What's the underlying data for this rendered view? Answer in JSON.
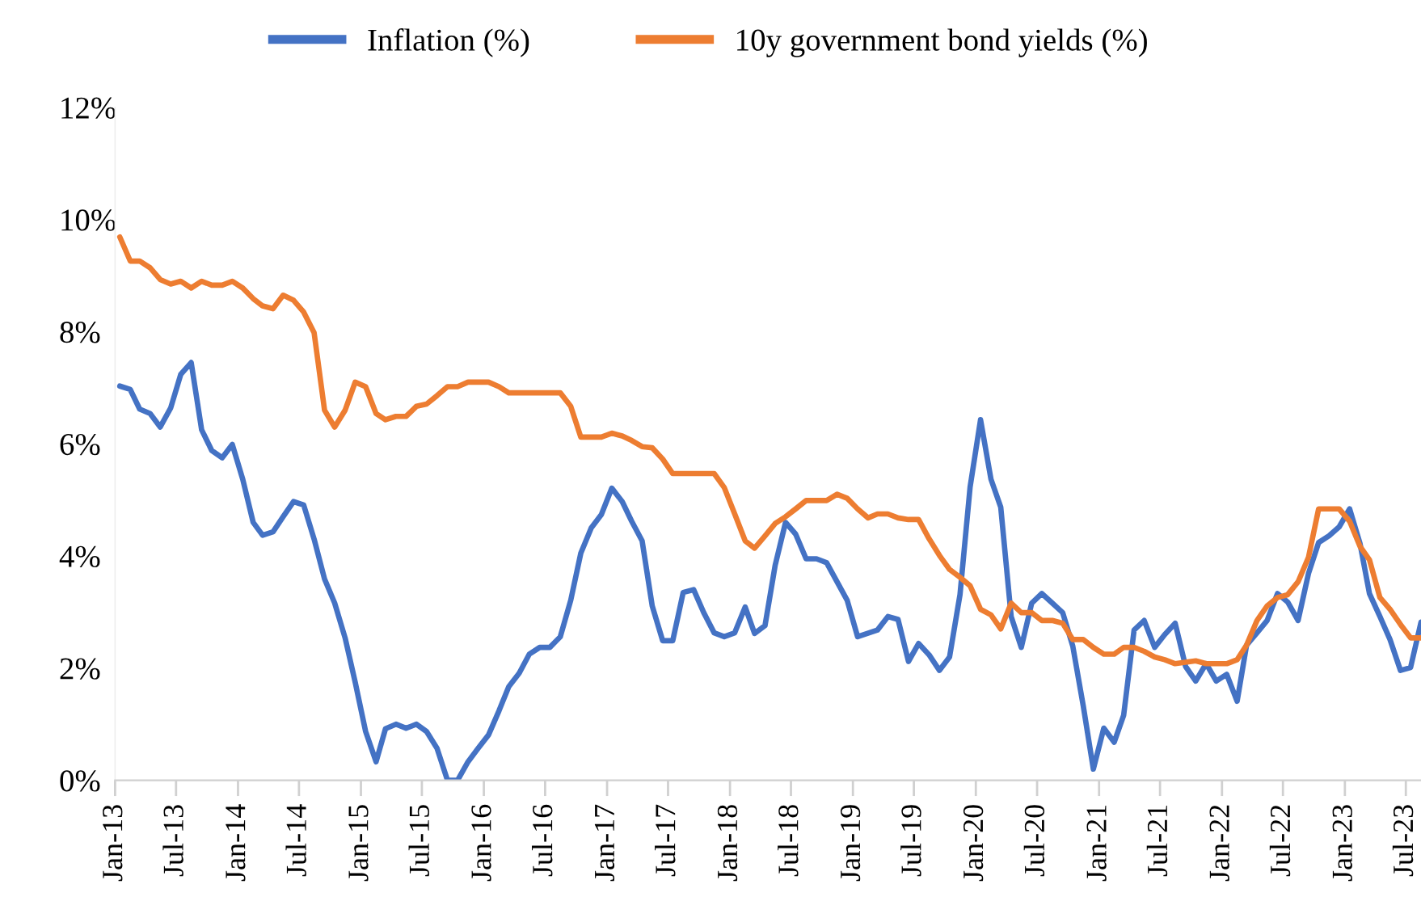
{
  "chart_data": {
    "type": "line",
    "legend": "top",
    "xlim": [
      "2013-01-01",
      "2023-08-15"
    ],
    "xticks": [
      {
        "value": "2013-01-01",
        "label": "Jan-13"
      },
      {
        "value": "2013-07-01",
        "label": "Jul-13"
      },
      {
        "value": "2014-01-01",
        "label": "Jan-14"
      },
      {
        "value": "2014-07-01",
        "label": "Jul-14"
      },
      {
        "value": "2015-01-01",
        "label": "Jan-15"
      },
      {
        "value": "2015-07-01",
        "label": "Jul-15"
      },
      {
        "value": "2016-01-01",
        "label": "Jan-16"
      },
      {
        "value": "2016-07-01",
        "label": "Jul-16"
      },
      {
        "value": "2017-01-01",
        "label": "Jan-17"
      },
      {
        "value": "2017-07-01",
        "label": "Jul-17"
      },
      {
        "value": "2018-01-01",
        "label": "Jan-18"
      },
      {
        "value": "2018-07-01",
        "label": "Jul-18"
      },
      {
        "value": "2019-01-01",
        "label": "Jan-19"
      },
      {
        "value": "2019-07-01",
        "label": "Jul-19"
      },
      {
        "value": "2020-01-01",
        "label": "Jan-20"
      },
      {
        "value": "2020-07-01",
        "label": "Jul-20"
      },
      {
        "value": "2021-01-01",
        "label": "Jan-21"
      },
      {
        "value": "2021-07-01",
        "label": "Jul-21"
      },
      {
        "value": "2022-01-01",
        "label": "Jan-22"
      },
      {
        "value": "2022-07-01",
        "label": "Jul-22"
      },
      {
        "value": "2023-01-01",
        "label": "Jan-23"
      },
      {
        "value": "2023-07-01",
        "label": "Jul-23"
      }
    ],
    "ylim": [
      0,
      12
    ],
    "yticks": [
      {
        "value": 0,
        "label": "0%"
      },
      {
        "value": 2,
        "label": "2%"
      },
      {
        "value": 4,
        "label": "4%"
      },
      {
        "value": 6,
        "label": "6%"
      },
      {
        "value": 8,
        "label": "8%"
      },
      {
        "value": 10,
        "label": "10%"
      },
      {
        "value": 12,
        "label": "12%"
      }
    ],
    "series": [
      {
        "name": "Inflation (%)",
        "color": "#4472c4",
        "x": [
          "2013-01-15",
          "2013-02-15",
          "2013-03-15",
          "2013-04-15",
          "2013-05-15",
          "2013-06-15",
          "2013-07-15",
          "2013-08-15",
          "2013-09-15",
          "2013-10-15",
          "2013-11-15",
          "2013-12-15",
          "2014-01-15",
          "2014-02-15",
          "2014-03-15",
          "2014-04-15",
          "2014-05-15",
          "2014-06-15",
          "2014-07-15",
          "2014-08-15",
          "2014-09-15",
          "2014-10-15",
          "2014-11-15",
          "2014-12-15",
          "2015-01-15",
          "2015-02-15",
          "2015-03-15",
          "2015-04-15",
          "2015-05-15",
          "2015-06-15",
          "2015-07-15",
          "2015-08-15",
          "2015-09-15",
          "2015-10-15",
          "2015-11-15",
          "2015-12-15",
          "2016-01-15",
          "2016-02-15",
          "2016-03-15",
          "2016-04-15",
          "2016-05-15",
          "2016-06-15",
          "2016-07-15",
          "2016-08-15",
          "2016-09-15",
          "2016-10-15",
          "2016-11-15",
          "2016-12-15",
          "2017-01-15",
          "2017-02-15",
          "2017-03-15",
          "2017-04-15",
          "2017-05-15",
          "2017-06-15",
          "2017-07-15",
          "2017-08-15",
          "2017-09-15",
          "2017-10-15",
          "2017-11-15",
          "2017-12-15",
          "2018-01-15",
          "2018-02-15",
          "2018-03-15",
          "2018-04-15",
          "2018-05-15",
          "2018-06-15",
          "2018-07-15",
          "2018-08-15",
          "2018-09-15",
          "2018-10-15",
          "2018-12-15",
          "2019-01-15",
          "2019-03-15",
          "2019-04-15",
          "2019-05-15",
          "2019-06-15",
          "2019-07-15",
          "2019-08-15",
          "2019-09-15",
          "2019-10-15",
          "2019-11-15",
          "2019-12-15",
          "2020-01-15",
          "2020-02-15",
          "2020-03-15",
          "2020-04-15",
          "2020-05-15",
          "2020-06-15",
          "2020-07-15",
          "2020-08-15",
          "2020-09-15",
          "2020-10-15",
          "2020-11-15",
          "2020-12-15",
          "2021-01-15",
          "2021-02-15",
          "2021-03-15",
          "2021-04-15",
          "2021-05-15",
          "2021-06-15",
          "2021-07-15",
          "2021-08-15",
          "2021-09-15",
          "2021-10-15",
          "2021-11-15",
          "2021-12-15",
          "2022-01-15",
          "2022-02-15",
          "2022-03-15",
          "2022-04-15",
          "2022-05-15",
          "2022-06-15",
          "2022-07-15",
          "2022-08-15",
          "2022-09-15",
          "2022-10-15",
          "2022-11-15",
          "2022-12-15",
          "2023-01-15",
          "2023-02-15",
          "2023-03-15",
          "2023-04-15",
          "2023-05-15",
          "2023-06-15",
          "2023-07-15",
          "2023-08-15"
        ],
        "values": [
          7.03,
          6.97,
          6.62,
          6.54,
          6.3,
          6.64,
          7.24,
          7.45,
          6.25,
          5.88,
          5.75,
          5.99,
          5.37,
          4.6,
          4.37,
          4.43,
          4.7,
          4.97,
          4.91,
          4.3,
          3.59,
          3.16,
          2.54,
          1.75,
          0.87,
          0.33,
          0.92,
          1.0,
          0.93,
          1.0,
          0.87,
          0.57,
          0,
          0,
          0.33,
          0.57,
          0.81,
          1.24,
          1.67,
          1.91,
          2.25,
          2.37,
          2.37,
          2.56,
          3.21,
          4.05,
          4.5,
          4.74,
          5.21,
          4.97,
          4.62,
          4.27,
          3.11,
          2.49,
          2.49,
          3.35,
          3.4,
          2.99,
          2.63,
          2.56,
          2.63,
          3.09,
          2.62,
          2.76,
          3.83,
          4.6,
          4.39,
          3.95,
          3.95,
          3.88,
          3.21,
          2.56,
          2.68,
          2.92,
          2.87,
          2.12,
          2.44,
          2.24,
          1.96,
          2.2,
          3.31,
          5.23,
          6.43,
          5.37,
          4.87,
          2.92,
          2.37,
          3.16,
          3.33,
          3.16,
          2.99,
          2.39,
          1.33,
          0.2,
          0.93,
          0.68,
          1.16,
          2.68,
          2.85,
          2.37,
          2.6,
          2.8,
          2.03,
          1.77,
          2.08,
          1.77,
          1.89,
          1.41,
          2.41,
          2.63,
          2.85,
          3.33,
          3.18,
          2.85,
          3.69,
          4.24,
          4.36,
          4.52,
          4.84,
          4.22,
          3.33,
          2.92,
          2.51,
          1.96,
          2.01,
          2.82
        ]
      },
      {
        "name": "10y government bond yields (%)",
        "color": "#ed7d31",
        "x": [
          "2013-01-15",
          "2013-02-15",
          "2013-03-15",
          "2013-04-15",
          "2013-05-15",
          "2013-06-15",
          "2013-07-15",
          "2013-08-15",
          "2013-09-15",
          "2013-10-15",
          "2013-11-15",
          "2013-12-15",
          "2014-01-15",
          "2014-02-15",
          "2014-03-15",
          "2014-04-15",
          "2014-05-15",
          "2014-06-15",
          "2014-07-15",
          "2014-08-15",
          "2014-09-15",
          "2014-10-15",
          "2014-11-15",
          "2014-12-15",
          "2015-01-15",
          "2015-02-15",
          "2015-03-15",
          "2015-04-15",
          "2015-05-15",
          "2015-06-15",
          "2015-07-15",
          "2015-08-15",
          "2015-09-15",
          "2015-10-15",
          "2015-11-15",
          "2015-12-15",
          "2016-01-15",
          "2016-02-15",
          "2016-03-15",
          "2016-08-15",
          "2016-09-15",
          "2016-10-15",
          "2016-12-15",
          "2017-01-15",
          "2017-02-15",
          "2017-03-15",
          "2017-04-15",
          "2017-05-15",
          "2017-06-15",
          "2017-07-15",
          "2017-11-15",
          "2017-12-15",
          "2018-01-15",
          "2018-02-15",
          "2018-03-15",
          "2018-04-15",
          "2018-05-15",
          "2018-06-15",
          "2018-07-15",
          "2018-08-15",
          "2018-10-15",
          "2018-11-15",
          "2018-12-15",
          "2019-01-15",
          "2019-02-15",
          "2019-03-15",
          "2019-04-15",
          "2019-05-15",
          "2019-06-15",
          "2019-07-15",
          "2019-08-15",
          "2019-09-15",
          "2019-10-15",
          "2019-11-15",
          "2019-12-15",
          "2020-01-15",
          "2020-02-15",
          "2020-03-15",
          "2020-04-15",
          "2020-05-15",
          "2020-06-15",
          "2020-07-15",
          "2020-08-15",
          "2020-09-15",
          "2020-10-15",
          "2020-11-15",
          "2020-12-15",
          "2021-01-15",
          "2021-02-15",
          "2021-03-15",
          "2021-04-15",
          "2021-05-15",
          "2021-06-15",
          "2021-07-15",
          "2021-08-15",
          "2021-10-15",
          "2021-11-15",
          "2022-01-15",
          "2022-02-15",
          "2022-03-15",
          "2022-04-15",
          "2022-05-15",
          "2022-06-15",
          "2022-07-15",
          "2022-08-15",
          "2022-09-15",
          "2022-10-15",
          "2022-12-15",
          "2023-01-15",
          "2023-02-15",
          "2023-03-15",
          "2023-04-15",
          "2023-05-15",
          "2023-06-15",
          "2023-07-15",
          "2023-08-15"
        ],
        "values": [
          9.69,
          9.26,
          9.26,
          9.14,
          8.93,
          8.85,
          8.9,
          8.78,
          8.9,
          8.83,
          8.83,
          8.9,
          8.78,
          8.59,
          8.46,
          8.41,
          8.65,
          8.56,
          8.35,
          7.98,
          6.6,
          6.3,
          6.6,
          7.1,
          7.02,
          6.54,
          6.43,
          6.49,
          6.49,
          6.67,
          6.71,
          6.86,
          7.02,
          7.02,
          7.1,
          7.1,
          7.1,
          7.02,
          6.91,
          6.91,
          6.67,
          6.12,
          6.12,
          6.19,
          6.14,
          6.06,
          5.95,
          5.93,
          5.73,
          5.47,
          5.47,
          5.22,
          4.75,
          4.27,
          4.14,
          4.36,
          4.58,
          4.7,
          4.84,
          4.99,
          4.99,
          5.1,
          5.03,
          4.84,
          4.68,
          4.75,
          4.75,
          4.68,
          4.65,
          4.65,
          4.31,
          4.01,
          3.76,
          3.62,
          3.47,
          3.05,
          2.95,
          2.7,
          3.16,
          2.99,
          2.99,
          2.85,
          2.85,
          2.8,
          2.51,
          2.51,
          2.37,
          2.25,
          2.25,
          2.37,
          2.37,
          2.3,
          2.2,
          2.15,
          2.08,
          2.13,
          2.08,
          2.08,
          2.15,
          2.41,
          2.85,
          3.11,
          3.26,
          3.31,
          3.54,
          3.98,
          4.84,
          4.84,
          4.62,
          4.17,
          3.93,
          3.26,
          3.05,
          2.78,
          2.54,
          2.54
        ]
      }
    ]
  }
}
